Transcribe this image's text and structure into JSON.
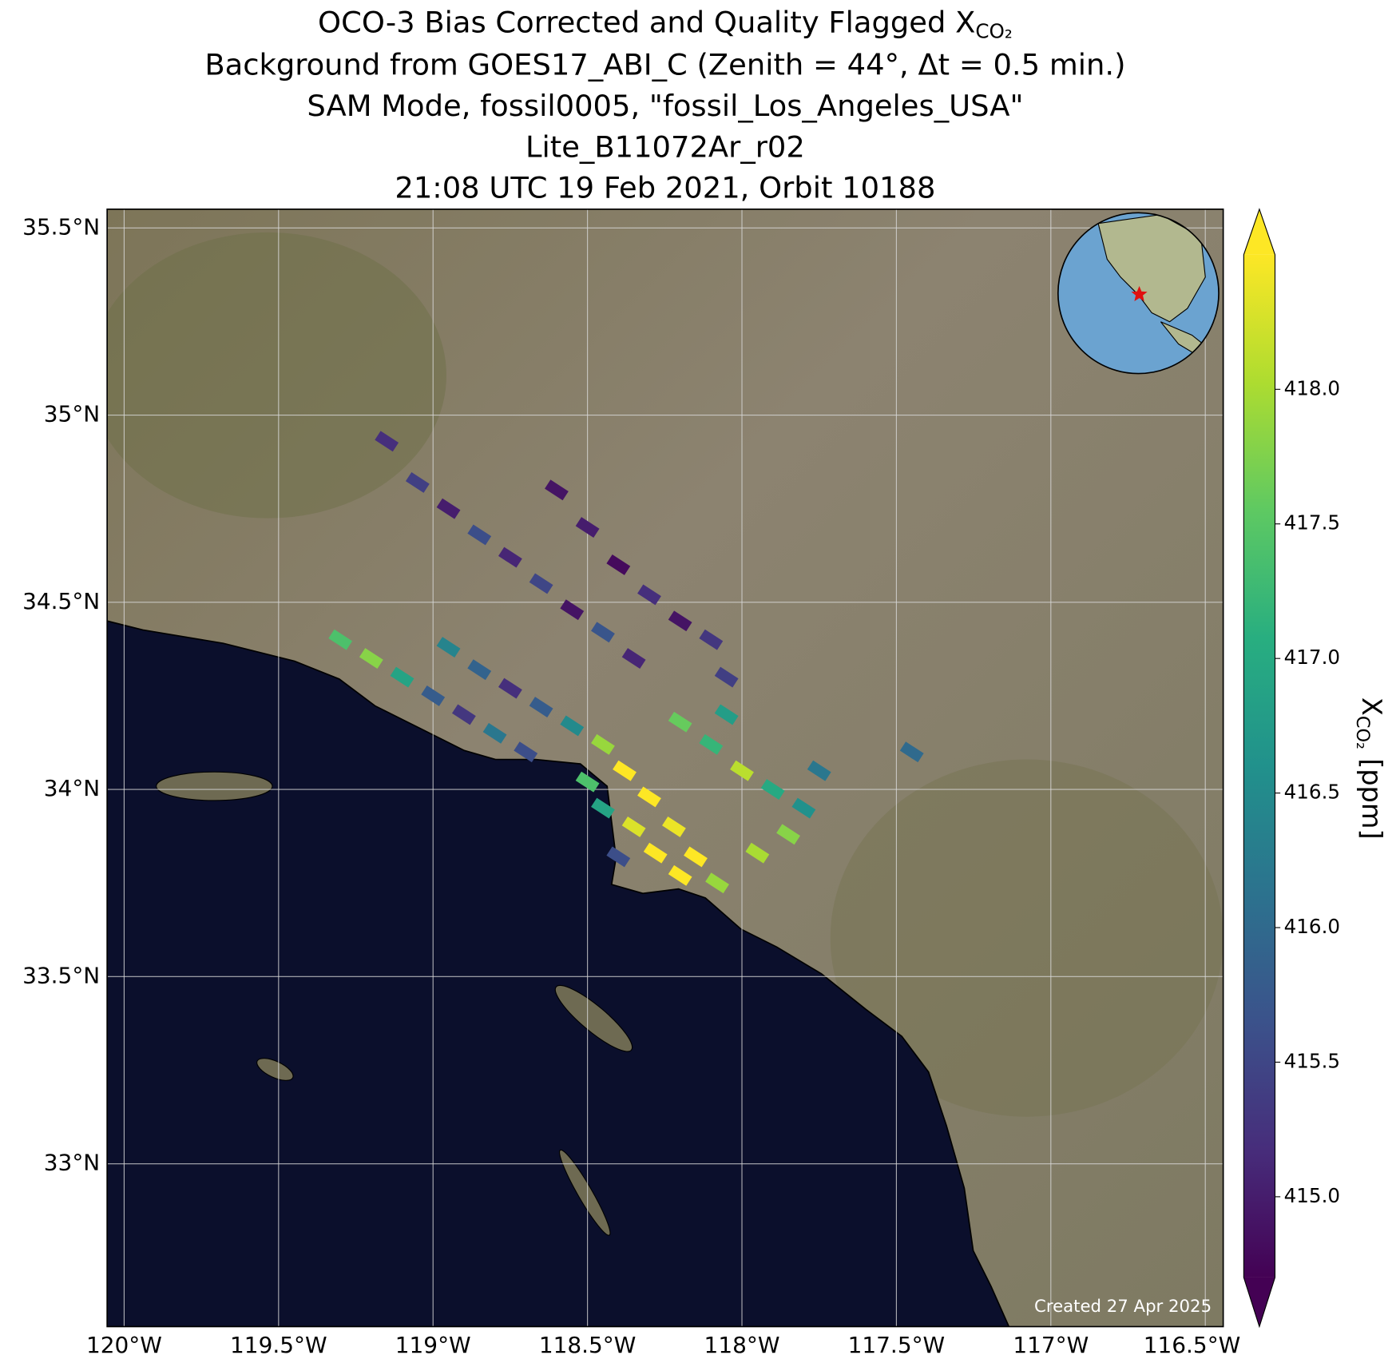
{
  "chart_data": {
    "type": "map",
    "title": {
      "main": "OCO-3 Bias Corrected and Quality Flagged X",
      "sub": "CO₂"
    },
    "subtitle_lines": [
      "Background from GOES17_ABI_C (Zenith = 44$^\\circ$, Δt =  0.5 min.)",
      "SAM Mode, fossil0005, \"fossil_Los_Angeles_USA\"",
      "Lite_B11072Ar_r02",
      "21:08 UTC 19 Feb 2021, Orbit 10188"
    ],
    "xlim": [
      -120.055,
      -116.442
    ],
    "ylim": [
      32.565,
      35.55
    ],
    "xticks": [
      {
        "value": -120,
        "label": "120°W"
      },
      {
        "value": -119.5,
        "label": "119.5°W"
      },
      {
        "value": -119,
        "label": "119°W"
      },
      {
        "value": -118.5,
        "label": "118.5°W"
      },
      {
        "value": -118,
        "label": "118°W"
      },
      {
        "value": -117.5,
        "label": "117.5°W"
      },
      {
        "value": -117,
        "label": "117°W"
      },
      {
        "value": -116.5,
        "label": "116.5°W"
      }
    ],
    "yticks": [
      {
        "value": 33,
        "label": "33°N"
      },
      {
        "value": 33.5,
        "label": "33.5°N"
      },
      {
        "value": 34,
        "label": "34°N"
      },
      {
        "value": 34.5,
        "label": "34.5°N"
      },
      {
        "value": 35,
        "label": "35°N"
      },
      {
        "value": 35.5,
        "label": "35.5°N"
      }
    ],
    "grid": true,
    "colormap": "viridis",
    "clim": [
      414.7,
      418.5
    ],
    "cticks": [
      {
        "value": 415,
        "label": "415.0"
      },
      415.5,
      {
        "value": 416,
        "label": "416.0"
      },
      416.5,
      {
        "value": 417,
        "label": "417.0"
      },
      417.5,
      {
        "value": 418,
        "label": "418.0"
      }
    ],
    "colorbar_label": {
      "main": "X",
      "sub": "CO₂",
      "unit": "[ppm]"
    },
    "credit": "Created 27 Apr 2025",
    "soundings": {
      "lon": [
        -119.15,
        -119.05,
        -118.95,
        -118.85,
        -118.75,
        -118.6,
        -118.5,
        -118.4,
        -118.3,
        -118.2,
        -118.1,
        -118.65,
        -118.55,
        -118.45,
        -118.35,
        -118.05,
        -119.3,
        -119.2,
        -119.1,
        -119.0,
        -118.9,
        -118.8,
        -118.7,
        -118.95,
        -118.85,
        -118.75,
        -118.65,
        -118.55,
        -118.45,
        -118.38,
        -118.3,
        -118.22,
        -118.15,
        -118.08,
        -118.35,
        -118.28,
        -118.2,
        -118.45,
        -118.4,
        -118.5,
        -118.2,
        -118.1,
        -118.0,
        -117.9,
        -117.8,
        -117.75,
        -117.85,
        -117.95,
        -118.05,
        -117.45
      ],
      "lat": [
        34.93,
        34.82,
        34.75,
        34.68,
        34.62,
        34.8,
        34.7,
        34.6,
        34.52,
        34.45,
        34.4,
        34.55,
        34.48,
        34.42,
        34.35,
        34.3,
        34.4,
        34.35,
        34.3,
        34.25,
        34.2,
        34.15,
        34.1,
        34.38,
        34.32,
        34.27,
        34.22,
        34.17,
        34.12,
        34.05,
        33.98,
        33.9,
        33.82,
        33.75,
        33.9,
        33.83,
        33.77,
        33.95,
        33.82,
        34.02,
        34.18,
        34.12,
        34.05,
        34.0,
        33.95,
        34.05,
        33.88,
        33.83,
        34.2,
        34.1
      ],
      "values": [
        415.2,
        415.4,
        415.0,
        415.6,
        415.1,
        414.9,
        415.0,
        414.8,
        415.2,
        414.9,
        415.3,
        415.5,
        414.9,
        415.7,
        415.1,
        415.4,
        417.4,
        417.8,
        416.9,
        415.8,
        415.3,
        416.2,
        415.6,
        416.4,
        415.9,
        415.2,
        415.8,
        416.5,
        417.9,
        418.5,
        418.6,
        418.4,
        418.7,
        417.9,
        418.3,
        418.6,
        418.5,
        416.9,
        415.6,
        417.4,
        417.6,
        417.2,
        418.1,
        417.0,
        416.6,
        416.2,
        417.8,
        418.0,
        416.8,
        416.0
      ]
    }
  }
}
